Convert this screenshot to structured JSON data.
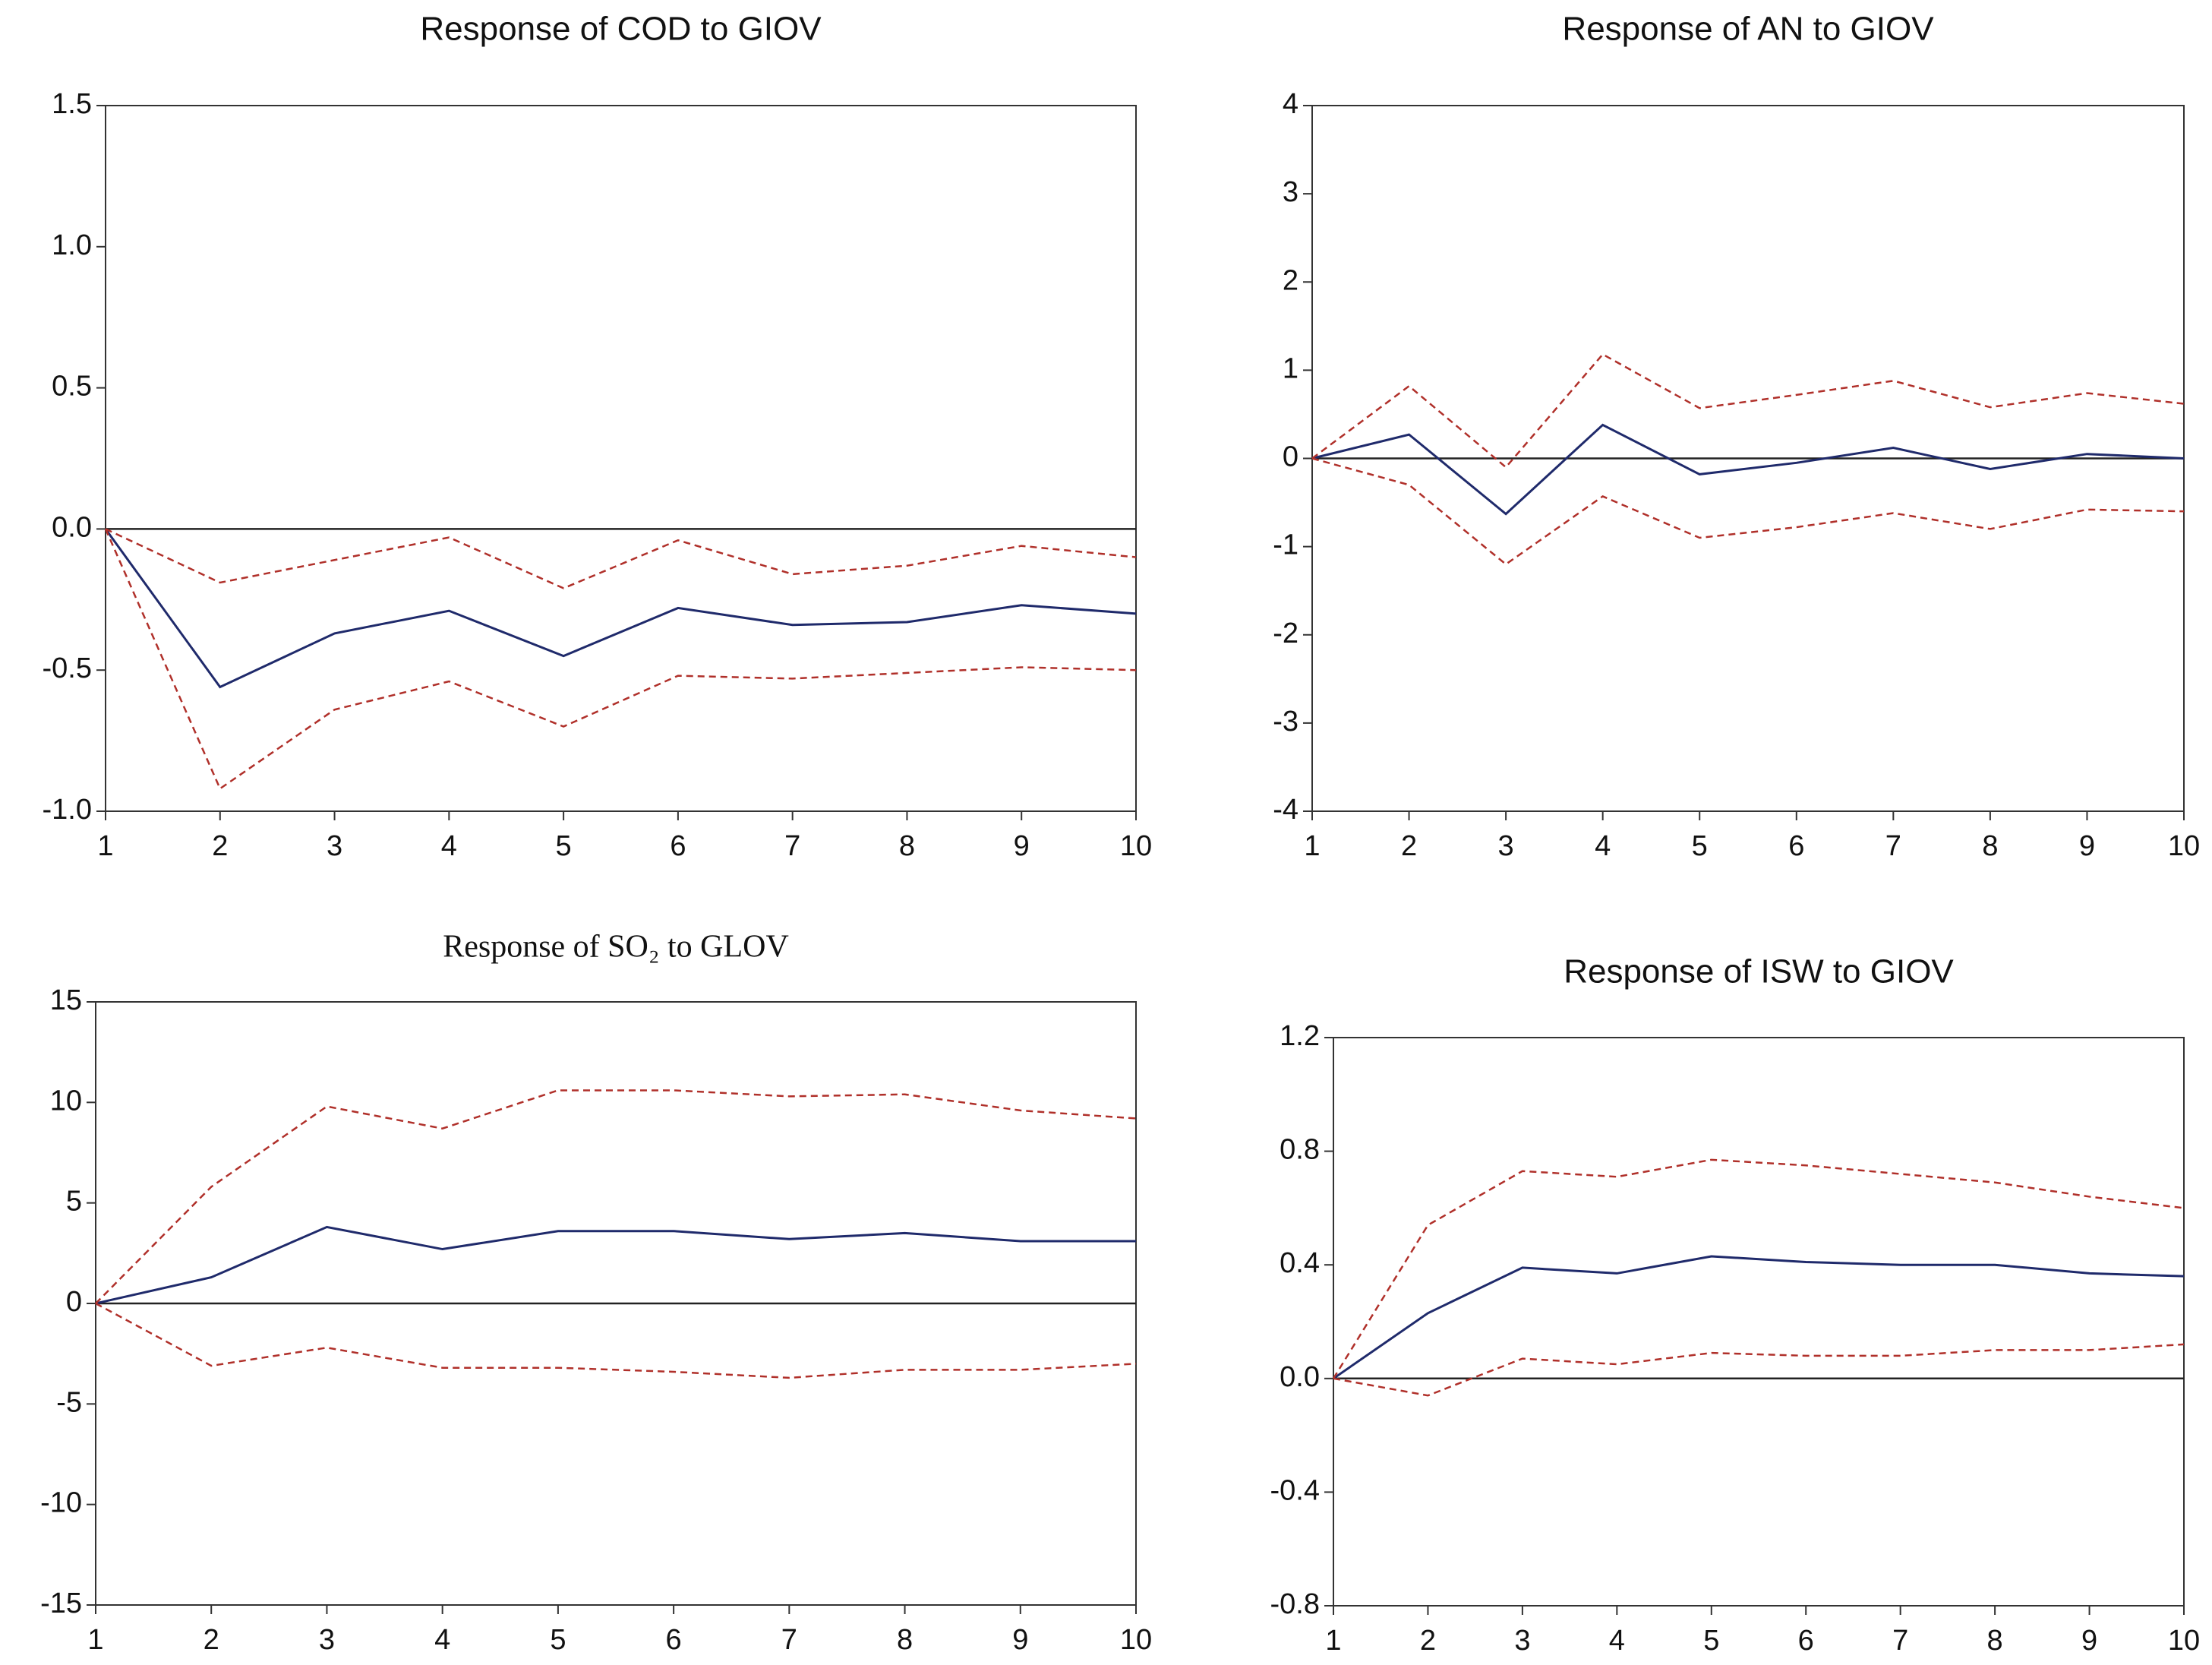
{
  "chart_data": [
    {
      "type": "line",
      "title": "Response of COD to GIOV",
      "x": [
        1,
        2,
        3,
        4,
        5,
        6,
        7,
        8,
        9,
        10
      ],
      "xlim": [
        1,
        10
      ],
      "xticks": [
        1,
        2,
        3,
        4,
        5,
        6,
        7,
        8,
        9,
        10
      ],
      "ylim": [
        -1.0,
        1.5
      ],
      "yticks": [
        {
          "value": -1.0,
          "label": "-1.0"
        },
        -0.5,
        {
          "value": 0.0,
          "label": "0.0"
        },
        0.5,
        {
          "value": 1.0,
          "label": "1.0"
        },
        1.5
      ],
      "zero_line": true,
      "series": [
        {
          "color": "#1f2a6b",
          "dashed": false,
          "values": [
            0,
            -0.56,
            -0.37,
            -0.29,
            -0.45,
            -0.28,
            -0.34,
            -0.33,
            -0.27,
            -0.3
          ]
        },
        {
          "color": "#b0302a",
          "dashed": true,
          "values": [
            0,
            -0.19,
            -0.11,
            -0.03,
            -0.21,
            -0.04,
            -0.16,
            -0.13,
            -0.06,
            -0.1
          ]
        },
        {
          "color": "#b0302a",
          "dashed": true,
          "values": [
            0,
            -0.92,
            -0.64,
            -0.54,
            -0.7,
            -0.52,
            -0.53,
            -0.51,
            -0.49,
            -0.5
          ]
        }
      ]
    },
    {
      "type": "line",
      "title": "Response of AN to GIOV",
      "x": [
        1,
        2,
        3,
        4,
        5,
        6,
        7,
        8,
        9,
        10
      ],
      "xlim": [
        1,
        10
      ],
      "xticks": [
        1,
        2,
        3,
        4,
        5,
        6,
        7,
        8,
        9,
        10
      ],
      "ylim": [
        -4,
        4
      ],
      "yticks": [
        -4,
        -3,
        -2,
        -1,
        0,
        1,
        2,
        3,
        4
      ],
      "zero_line": true,
      "series": [
        {
          "color": "#1f2a6b",
          "dashed": false,
          "values": [
            0,
            0.27,
            -0.63,
            0.38,
            -0.18,
            -0.05,
            0.12,
            -0.12,
            0.05,
            0
          ]
        },
        {
          "color": "#b0302a",
          "dashed": true,
          "values": [
            0,
            0.82,
            -0.1,
            1.18,
            0.57,
            0.72,
            0.88,
            0.58,
            0.74,
            0.62
          ]
        },
        {
          "color": "#b0302a",
          "dashed": true,
          "values": [
            0,
            -0.3,
            -1.2,
            -0.43,
            -0.9,
            -0.78,
            -0.62,
            -0.8,
            -0.58,
            -0.6
          ]
        }
      ]
    },
    {
      "type": "line",
      "title": "Response of SO₂ to GLOV",
      "title_font": "serif",
      "x": [
        1,
        2,
        3,
        4,
        5,
        6,
        7,
        8,
        9,
        10
      ],
      "xlim": [
        1,
        10
      ],
      "xticks": [
        1,
        2,
        3,
        4,
        5,
        6,
        7,
        8,
        9,
        10
      ],
      "ylim": [
        -15,
        15
      ],
      "yticks": [
        -15,
        -10,
        -5,
        0,
        5,
        10,
        15
      ],
      "zero_line": true,
      "series": [
        {
          "color": "#1f2a6b",
          "dashed": false,
          "values": [
            0,
            1.3,
            3.8,
            2.7,
            3.6,
            3.6,
            3.2,
            3.5,
            3.1,
            3.1
          ]
        },
        {
          "color": "#b0302a",
          "dashed": true,
          "values": [
            0,
            5.8,
            9.8,
            8.7,
            10.6,
            10.6,
            10.3,
            10.4,
            9.6,
            9.2
          ]
        },
        {
          "color": "#b0302a",
          "dashed": true,
          "values": [
            0,
            -3.1,
            -2.2,
            -3.2,
            -3.2,
            -3.4,
            -3.7,
            -3.3,
            -3.3,
            -3.0
          ]
        }
      ]
    },
    {
      "type": "line",
      "title": "Response of ISW to GIOV",
      "x": [
        1,
        2,
        3,
        4,
        5,
        6,
        7,
        8,
        9,
        10
      ],
      "xlim": [
        1,
        10
      ],
      "xticks": [
        1,
        2,
        3,
        4,
        5,
        6,
        7,
        8,
        9,
        10
      ],
      "ylim": [
        -0.8,
        1.2
      ],
      "yticks": [
        -0.8,
        -0.4,
        {
          "value": 0.0,
          "label": "0.0"
        },
        0.4,
        0.8,
        1.2
      ],
      "zero_line": true,
      "series": [
        {
          "color": "#1f2a6b",
          "dashed": false,
          "values": [
            0,
            0.23,
            0.39,
            0.37,
            0.43,
            0.41,
            0.4,
            0.4,
            0.37,
            0.36
          ]
        },
        {
          "color": "#b0302a",
          "dashed": true,
          "values": [
            0,
            0.54,
            0.73,
            0.71,
            0.77,
            0.75,
            0.72,
            0.69,
            0.64,
            0.6
          ]
        },
        {
          "color": "#b0302a",
          "dashed": true,
          "values": [
            0,
            -0.06,
            0.07,
            0.05,
            0.09,
            0.08,
            0.08,
            0.1,
            0.1,
            0.12
          ]
        }
      ]
    }
  ]
}
